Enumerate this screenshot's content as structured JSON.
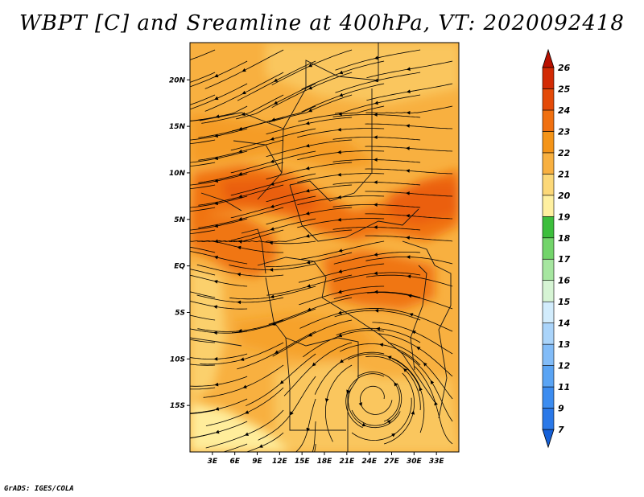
{
  "title": "WBPT [C] and Sreamline at 400hPa, VT: 2020092418",
  "credit": "GrADS: IGES/COLA",
  "map": {
    "variable": "Wet-bulb potential temperature",
    "units": "C",
    "level": "400hPa",
    "valid_time": "2020092418",
    "lon_range": [
      0,
      36
    ],
    "lat_range": [
      -20,
      24
    ],
    "lat_ticks": [
      {
        "value": 20,
        "label": "20N"
      },
      {
        "value": 15,
        "label": "15N"
      },
      {
        "value": 10,
        "label": "10N"
      },
      {
        "value": 5,
        "label": "5N"
      },
      {
        "value": 0,
        "label": "EQ"
      },
      {
        "value": -5,
        "label": "5S"
      },
      {
        "value": -10,
        "label": "10S"
      },
      {
        "value": -15,
        "label": "15S"
      }
    ],
    "lon_ticks": [
      {
        "value": 3,
        "label": "3E"
      },
      {
        "value": 6,
        "label": "6E"
      },
      {
        "value": 9,
        "label": "9E"
      },
      {
        "value": 12,
        "label": "12E"
      },
      {
        "value": 15,
        "label": "15E"
      },
      {
        "value": 18,
        "label": "18E"
      },
      {
        "value": 21,
        "label": "21E"
      },
      {
        "value": 24,
        "label": "24E"
      },
      {
        "value": 27,
        "label": "27E"
      },
      {
        "value": 30,
        "label": "30E"
      },
      {
        "value": 33,
        "label": "33E"
      }
    ]
  },
  "colorbar": {
    "levels": [
      "7",
      "9",
      "11",
      "12",
      "13",
      "14",
      "15",
      "16",
      "17",
      "18",
      "19",
      "20",
      "21",
      "22",
      "23",
      "24",
      "25",
      "26"
    ],
    "colors": [
      "#1560d8",
      "#2a78e8",
      "#3c8cf0",
      "#5aa4f4",
      "#82bcf8",
      "#aad4fa",
      "#d2ecfc",
      "#d6f4d4",
      "#a6e6a0",
      "#72d46a",
      "#3cbe3c",
      "#fff0a0",
      "#fcd878",
      "#f8b040",
      "#f49418",
      "#f07010",
      "#e44a08",
      "#d22a04",
      "#b81000"
    ],
    "extend": "both"
  }
}
